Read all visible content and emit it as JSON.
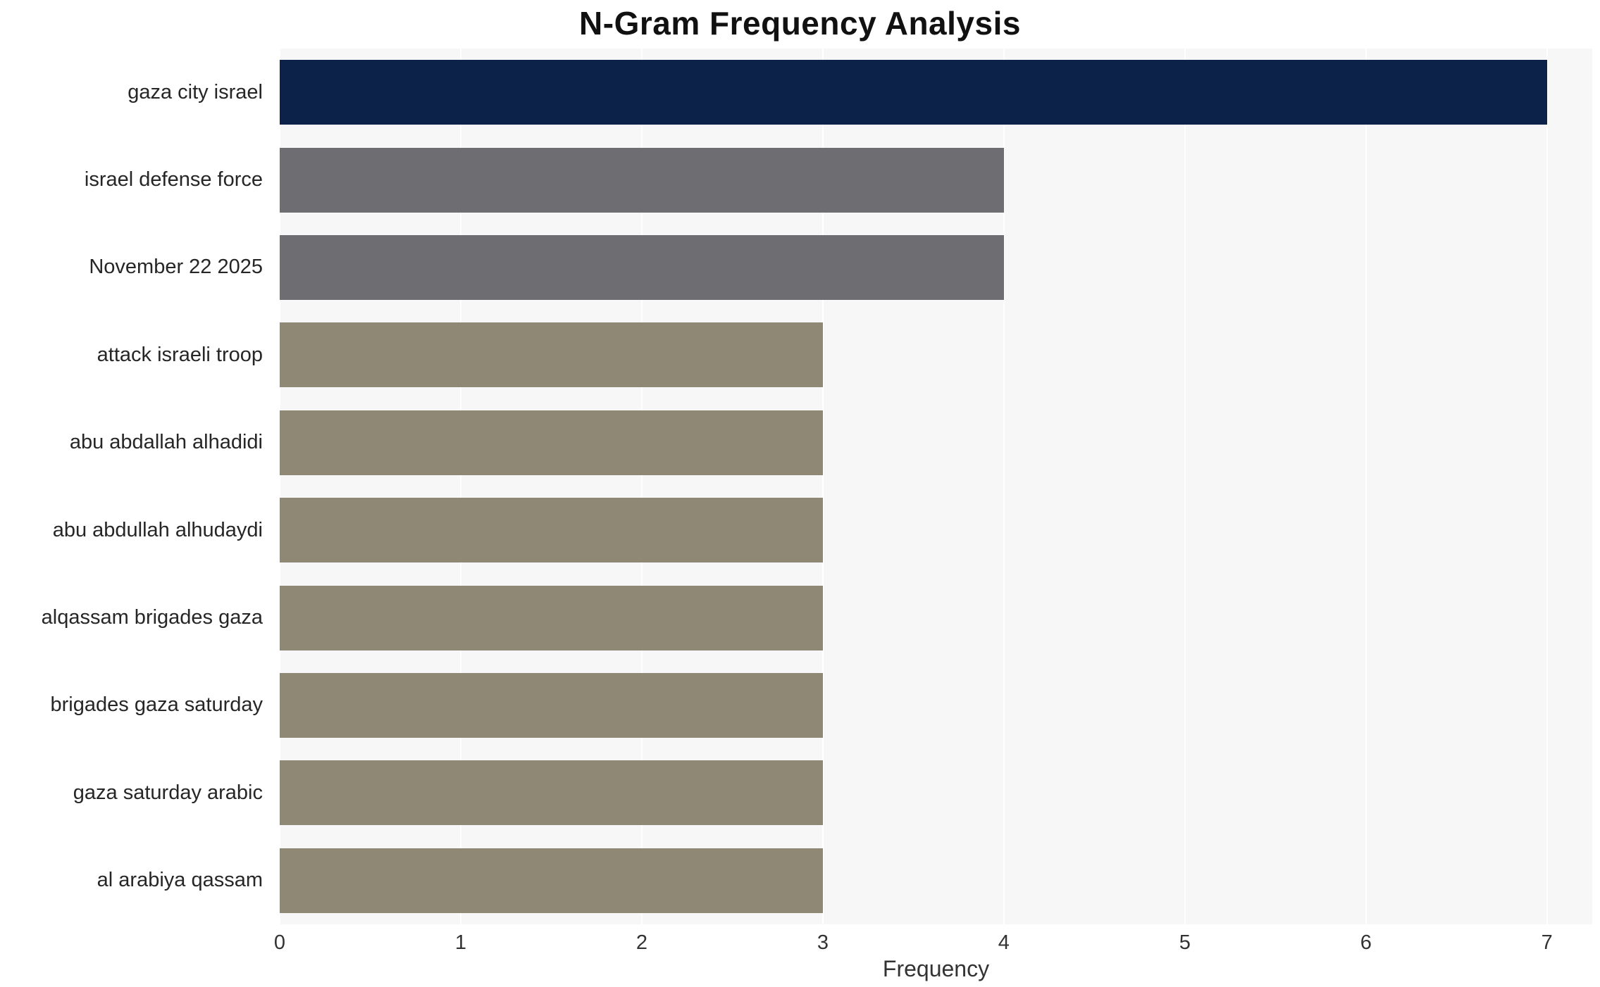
{
  "chart_data": {
    "type": "bar",
    "orientation": "horizontal",
    "title": "N-Gram Frequency Analysis",
    "xlabel": "Frequency",
    "ylabel": "",
    "categories": [
      "gaza city israel",
      "israel defense force",
      "November 22 2025",
      "attack israeli troop",
      "abu abdallah alhadidi",
      "abu abdullah alhudaydi",
      "alqassam brigades gaza",
      "brigades gaza saturday",
      "gaza saturday arabic",
      "al arabiya qassam"
    ],
    "values": [
      7,
      4,
      4,
      3,
      3,
      3,
      3,
      3,
      3,
      3
    ],
    "xticks": [
      0,
      1,
      2,
      3,
      4,
      5,
      6,
      7
    ],
    "xlim": [
      0,
      7.25
    ],
    "bar_colors": [
      "#0c2249",
      "#6e6e72",
      "#6e6e72",
      "#8e8875",
      "#8e8875",
      "#8e8875",
      "#8e8875",
      "#8e8875",
      "#8e8875",
      "#8e8875"
    ],
    "plot_bg": "#f7f7f7",
    "grid_color": "#ffffff",
    "grid": true,
    "legend_position": "none"
  }
}
